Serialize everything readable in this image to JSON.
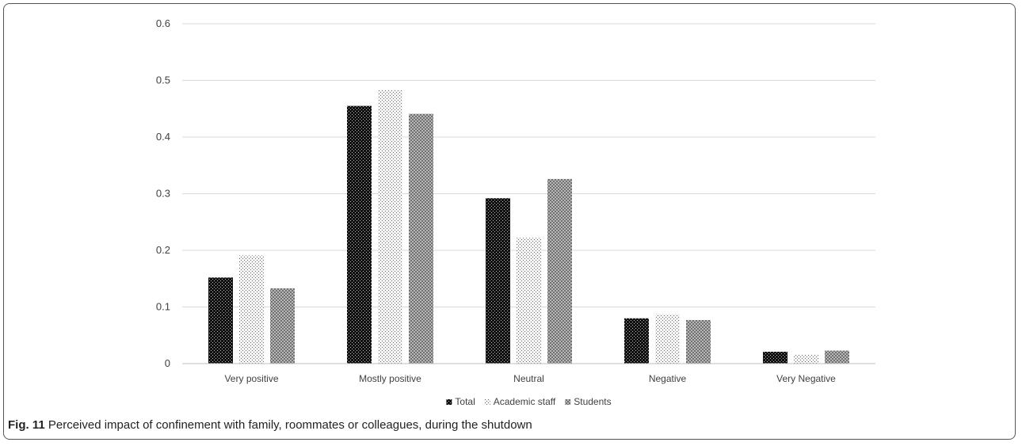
{
  "chart_data": {
    "type": "bar",
    "categories": [
      "Very positive",
      "Mostly positive",
      "Neutral",
      "Negative",
      "Very Negative"
    ],
    "series": [
      {
        "name": "Total",
        "values": [
          0.152,
          0.455,
          0.292,
          0.08,
          0.021
        ],
        "pattern": "dark-dots"
      },
      {
        "name": "Academic staff",
        "values": [
          0.191,
          0.483,
          0.222,
          0.087,
          0.016
        ],
        "pattern": "light-dots"
      },
      {
        "name": "Students",
        "values": [
          0.133,
          0.441,
          0.326,
          0.077,
          0.023
        ],
        "pattern": "grey-checks"
      }
    ],
    "yticks": [
      "0",
      "0.1",
      "0.2",
      "0.3",
      "0.4",
      "0.5",
      "0.6"
    ],
    "ylim": [
      0,
      0.6
    ],
    "grid": true,
    "legend_position": "bottom",
    "title": "",
    "xlabel": "",
    "ylabel": ""
  },
  "caption": {
    "label": "Fig. 11",
    "text": "Perceived impact of confinement with family, roommates or colleagues, during the shutdown"
  }
}
